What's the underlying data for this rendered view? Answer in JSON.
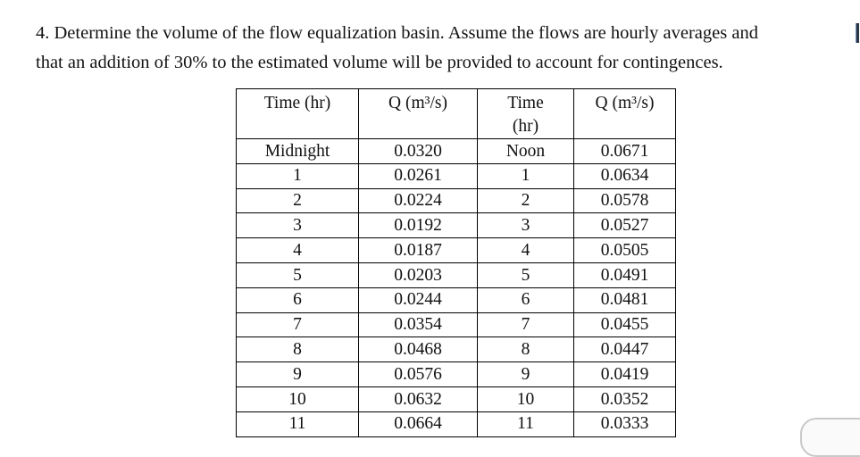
{
  "problem": {
    "line1": "4. Determine the volume of the flow equalization basin. Assume the flows are hourly averages and",
    "line2": "that an addition of 30% to the estimated volume will be provided to account for contingences."
  },
  "table": {
    "headers": [
      "Time (hr)",
      "Q (m³/s)",
      "Time\n(hr)",
      "Q (m³/s)"
    ],
    "rows": [
      [
        "Midnight",
        "0.0320",
        "Noon",
        "0.0671"
      ],
      [
        "1",
        "0.0261",
        "1",
        "0.0634"
      ],
      [
        "2",
        "0.0224",
        "2",
        "0.0578"
      ],
      [
        "3",
        "0.0192",
        "3",
        "0.0527"
      ],
      [
        "4",
        "0.0187",
        "4",
        "0.0505"
      ],
      [
        "5",
        "0.0203",
        "5",
        "0.0491"
      ],
      [
        "6",
        "0.0244",
        "6",
        "0.0481"
      ],
      [
        "7",
        "0.0354",
        "7",
        "0.0455"
      ],
      [
        "8",
        "0.0468",
        "8",
        "0.0447"
      ],
      [
        "9",
        "0.0576",
        "9",
        "0.0419"
      ],
      [
        "10",
        "0.0632",
        "10",
        "0.0352"
      ],
      [
        "11",
        "0.0664",
        "11",
        "0.0333"
      ]
    ]
  },
  "colors": {
    "text": "#121212",
    "table_border": "#000000",
    "peek_button_border": "#c9c9c9",
    "peek_button_fill": "#fafafa",
    "cursor_mark": "#2e3744"
  }
}
